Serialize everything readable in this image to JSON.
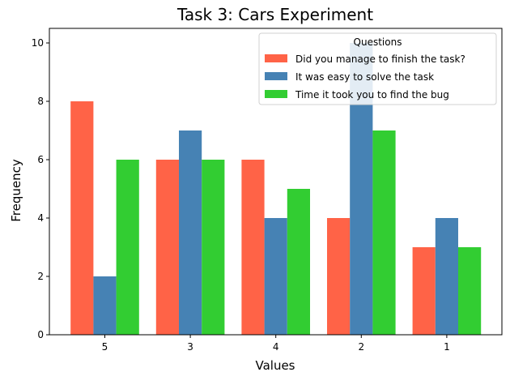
{
  "chart_data": {
    "type": "bar",
    "title": "Task 3: Cars Experiment",
    "xlabel": "Values",
    "ylabel": "Frequency",
    "categories": [
      "5",
      "3",
      "4",
      "2",
      "1"
    ],
    "ylim": [
      0,
      10.5
    ],
    "yticks": [
      "0",
      "2",
      "4",
      "6",
      "8",
      "10"
    ],
    "grid": false,
    "legend": {
      "title": "Questions",
      "placement": "top-right"
    },
    "series": [
      {
        "name": "Did you manage to finish the task?",
        "color": "#ff6347",
        "values": [
          8,
          6,
          6,
          4,
          3
        ]
      },
      {
        "name": "It was easy to solve the task",
        "color": "#4682b4",
        "values": [
          2,
          7,
          4,
          10,
          4
        ]
      },
      {
        "name": "Time it took you to find the bug",
        "color": "#32cd32",
        "values": [
          6,
          6,
          5,
          7,
          3
        ]
      }
    ]
  }
}
